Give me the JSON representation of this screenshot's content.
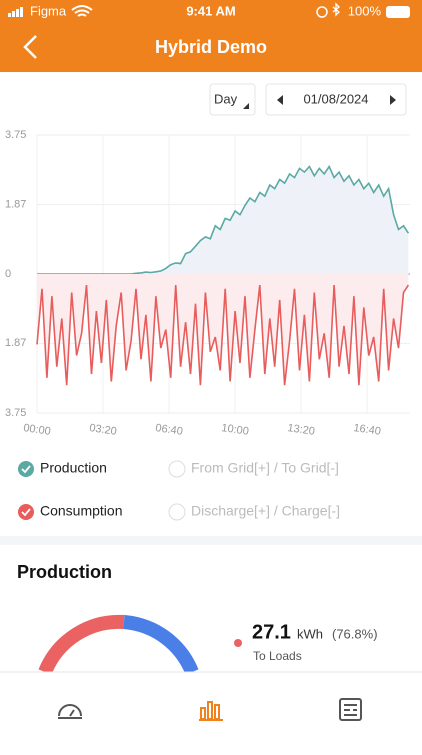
{
  "status_bar": {
    "carrier": "Figma",
    "time": "9:41 AM",
    "battery": "100%"
  },
  "header": {
    "title": "Hybrid Demo"
  },
  "controls": {
    "period": "Day",
    "date": "01/08/2024"
  },
  "chart_data": {
    "type": "line",
    "x": [
      0,
      0.25,
      0.5,
      0.75,
      1,
      1.25,
      1.5,
      1.75,
      2,
      2.25,
      2.5,
      2.75,
      3,
      3.25,
      3.5,
      3.75,
      4,
      4.25,
      4.5,
      4.75,
      5,
      5.25,
      5.5,
      5.75,
      6,
      6.25,
      6.5,
      6.75,
      7,
      7.25,
      7.5,
      7.75,
      8,
      8.25,
      8.5,
      8.75,
      9,
      9.25,
      9.5,
      9.75,
      10,
      10.25,
      10.5,
      10.75,
      11,
      11.25,
      11.5,
      11.75,
      12,
      12.25,
      12.5,
      12.75,
      13,
      13.25,
      13.5,
      13.75,
      14,
      14.25,
      14.5,
      14.75,
      15,
      15.25,
      15.5,
      15.75,
      16,
      16.25,
      16.5,
      16.75,
      17,
      17.25,
      17.5,
      17.75,
      18,
      18.25,
      18.5,
      18.75
    ],
    "series": [
      {
        "name": "Production",
        "color": "#5aa9a3",
        "values": [
          0,
          0,
          0,
          0,
          0,
          0,
          0,
          0,
          0,
          0,
          0,
          0,
          0,
          0,
          0,
          0,
          0,
          0,
          0,
          0,
          0.02,
          0.03,
          0.05,
          0.04,
          0.06,
          0.08,
          0.15,
          0.25,
          0.3,
          0.28,
          0.55,
          0.6,
          0.75,
          0.9,
          1.0,
          0.95,
          1.3,
          1.2,
          1.5,
          1.45,
          1.7,
          1.6,
          1.85,
          2.05,
          1.95,
          2.2,
          2.1,
          2.4,
          2.3,
          2.55,
          2.45,
          2.7,
          2.6,
          2.85,
          2.75,
          2.9,
          2.65,
          2.85,
          2.7,
          2.9,
          2.6,
          2.75,
          2.5,
          2.65,
          2.4,
          2.55,
          2.3,
          2.45,
          2.2,
          2.4,
          2.1,
          2.3,
          1.6,
          1.2,
          1.3,
          1.1
        ]
      },
      {
        "name": "Consumption",
        "color": "#e85c5c",
        "values": [
          -1.9,
          -0.4,
          -2.8,
          -0.6,
          -2.5,
          -1.2,
          -3.0,
          -0.5,
          -2.2,
          -1.6,
          -0.3,
          -2.7,
          -1.0,
          -2.4,
          -0.7,
          -2.9,
          -1.4,
          -0.5,
          -2.6,
          -1.8,
          -0.4,
          -2.3,
          -1.1,
          -2.9,
          -0.6,
          -2.0,
          -1.5,
          -2.8,
          -0.3,
          -2.5,
          -1.3,
          -2.7,
          -0.8,
          -3.0,
          -0.5,
          -2.1,
          -1.7,
          -2.6,
          -0.4,
          -2.9,
          -1.0,
          -2.4,
          -0.6,
          -2.8,
          -1.5,
          -0.3,
          -2.7,
          -1.2,
          -2.5,
          -0.7,
          -3.0,
          -1.8,
          -0.4,
          -2.6,
          -1.1,
          -2.9,
          -0.5,
          -2.3,
          -1.6,
          -2.8,
          -0.3,
          -2.5,
          -1.4,
          -2.7,
          -0.6,
          -3.0,
          -0.9,
          -2.2,
          -1.7,
          -2.9,
          -0.4,
          -2.6,
          -1.2,
          -2.0,
          -0.5,
          -0.3
        ]
      }
    ],
    "xlim": [
      0,
      18.83
    ],
    "xticks": [
      {
        "value": 0,
        "label": "00:00"
      },
      {
        "value": 3.333,
        "label": "03:20"
      },
      {
        "value": 6.667,
        "label": "06:40"
      },
      {
        "value": 10,
        "label": "10:00"
      },
      {
        "value": 13.333,
        "label": "13:20"
      },
      {
        "value": 16.667,
        "label": "16:40"
      }
    ],
    "ylim": [
      -3.75,
      3.75
    ],
    "yticks": [
      3.75,
      1.87,
      0,
      {
        "value": -1.87,
        "label": "1.87"
      },
      {
        "value": -3.75,
        "label": "3.75"
      }
    ],
    "grid": true
  },
  "inactive_legend": [
    "From Grid[+] / To Grid[-]",
    "Discharge[+] / Charge[-]"
  ],
  "production": {
    "title": "Production",
    "value": "27.1",
    "unit": "kWh",
    "percent": "(76.8%)",
    "label": "To Loads"
  }
}
